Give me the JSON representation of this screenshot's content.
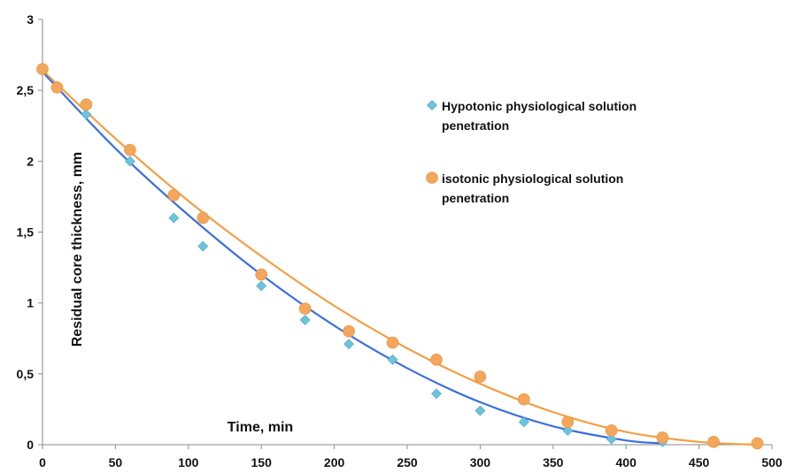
{
  "chart_data": {
    "type": "scatter",
    "title": "",
    "xlabel": "Time, min",
    "ylabel": "Residual core thickness, mm",
    "xlim": [
      0,
      500
    ],
    "ylim": [
      0,
      3
    ],
    "x_ticks": [
      0,
      50,
      100,
      150,
      200,
      250,
      300,
      350,
      400,
      450,
      500
    ],
    "y_ticks": [
      0,
      0.5,
      1,
      1.5,
      2,
      2.5,
      3
    ],
    "x_tick_labels": [
      "0",
      "50",
      "100",
      "150",
      "200",
      "250",
      "300",
      "350",
      "400",
      "450",
      "500"
    ],
    "y_tick_labels": [
      "0",
      "0,5",
      "1",
      "1,5",
      "2",
      "2,5",
      "3"
    ],
    "grid": false,
    "legend_position": "top-right",
    "series": [
      {
        "name": "Hypotonic physiological solution penetration",
        "legend_lines": [
          "Hypotonic physiological solution",
          "penetration"
        ],
        "marker": "diamond",
        "marker_color": "#6ec3dc",
        "trend_color": "#3b6fe0",
        "x": [
          0,
          10,
          30,
          60,
          90,
          110,
          150,
          180,
          210,
          240,
          270,
          300,
          330,
          360,
          390,
          425
        ],
        "y": [
          2.64,
          2.53,
          2.33,
          2.0,
          1.6,
          1.4,
          1.12,
          0.88,
          0.71,
          0.6,
          0.36,
          0.24,
          0.16,
          0.1,
          0.04,
          0.02
        ],
        "trend": [
          [
            0,
            2.63
          ],
          [
            50,
            2.09
          ],
          [
            100,
            1.62
          ],
          [
            150,
            1.2
          ],
          [
            200,
            0.84
          ],
          [
            250,
            0.54
          ],
          [
            300,
            0.3
          ],
          [
            350,
            0.13
          ],
          [
            400,
            0.03
          ],
          [
            425,
            0.01
          ]
        ]
      },
      {
        "name": "isotonic physiological solution penetration",
        "legend_lines": [
          "isotonic physiological solution",
          "penetration"
        ],
        "marker": "circle",
        "marker_color": "#f3a75c",
        "trend_color": "#f2a046",
        "x": [
          0,
          10,
          30,
          60,
          90,
          110,
          150,
          180,
          210,
          240,
          270,
          300,
          330,
          360,
          390,
          425,
          460,
          490
        ],
        "y": [
          2.65,
          2.52,
          2.4,
          2.08,
          1.76,
          1.6,
          1.2,
          0.96,
          0.8,
          0.72,
          0.6,
          0.48,
          0.32,
          0.16,
          0.1,
          0.05,
          0.02,
          0.01
        ],
        "trend": [
          [
            0,
            2.64
          ],
          [
            50,
            2.16
          ],
          [
            100,
            1.72
          ],
          [
            150,
            1.33
          ],
          [
            200,
            0.98
          ],
          [
            250,
            0.68
          ],
          [
            300,
            0.43
          ],
          [
            350,
            0.23
          ],
          [
            400,
            0.09
          ],
          [
            450,
            0.02
          ],
          [
            490,
            0.0
          ]
        ]
      }
    ]
  }
}
